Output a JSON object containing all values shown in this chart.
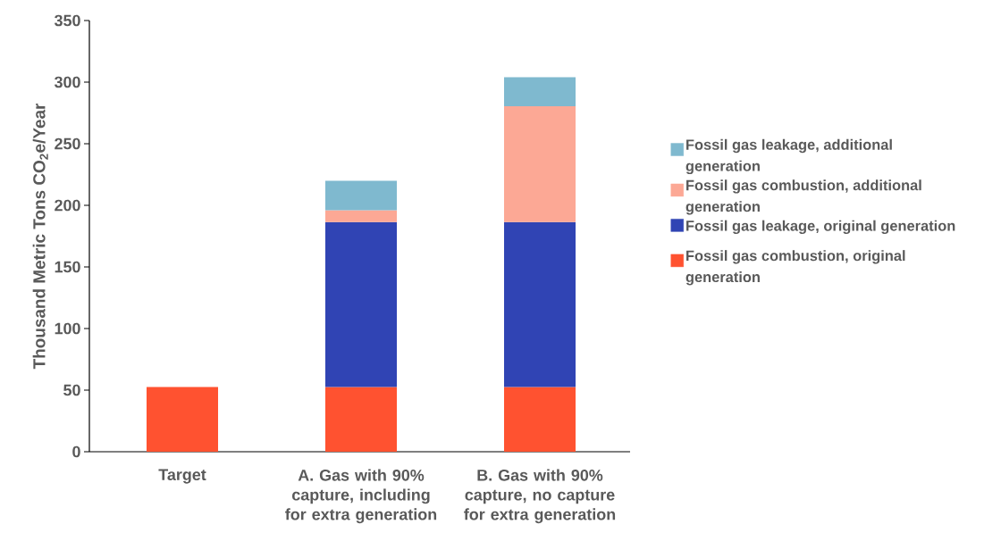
{
  "chart_data": {
    "type": "bar",
    "stacked": true,
    "ylabel": "Thousand Metric Tons CO$_{2}$e/Year",
    "categories": [
      "Target",
      "A. Gas with 90% capture, including for extra generation",
      "B. Gas with 90% capture, no capture for extra generation"
    ],
    "series": [
      {
        "name": "Fossil gas combustion, original generation",
        "color": "#ff5230",
        "values": [
          52.5,
          52.5,
          52.5
        ]
      },
      {
        "name": "Fossil gas leakage, original generation",
        "color": "#3044b4",
        "values": [
          null,
          134,
          134
        ]
      },
      {
        "name": "Fossil gas combustion, additional generation",
        "color": "#fca895",
        "values": [
          null,
          9.5,
          94
        ]
      },
      {
        "name": "Fossil gas leakage, additional generation",
        "color": "#7fb9cf",
        "values": [
          null,
          24,
          23.5
        ]
      }
    ],
    "ylim": [
      0,
      350
    ],
    "yticks": [
      0,
      50,
      100,
      150,
      200,
      250,
      300,
      350
    ],
    "legend": "right",
    "grid": false
  }
}
